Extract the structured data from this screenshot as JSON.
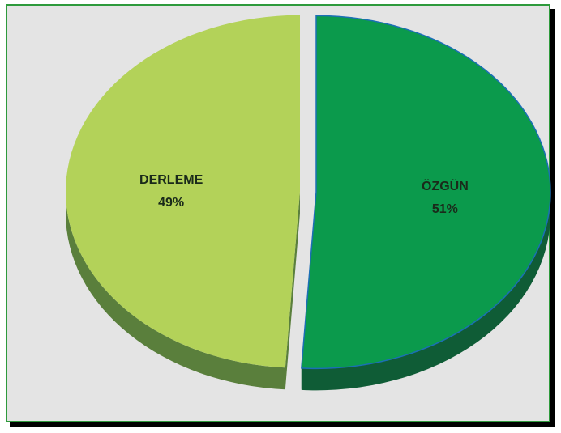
{
  "chart_data": {
    "type": "pie",
    "style": "3d-exploded",
    "slices": [
      {
        "name": "ÖZGÜN",
        "value": 51,
        "pct_label": "51%",
        "color": "#0b9a4c",
        "side_color": "#0f5c36",
        "label_color": "#1a2a1a"
      },
      {
        "name": "DERLEME",
        "value": 49,
        "pct_label": "49%",
        "color": "#b3d259",
        "side_color": "#5a7f3c",
        "label_color": "#1a2a1a"
      }
    ],
    "title": "",
    "legend": "none",
    "frame": {
      "background": "#e4e4e4",
      "border": "#2e9a3c"
    }
  }
}
